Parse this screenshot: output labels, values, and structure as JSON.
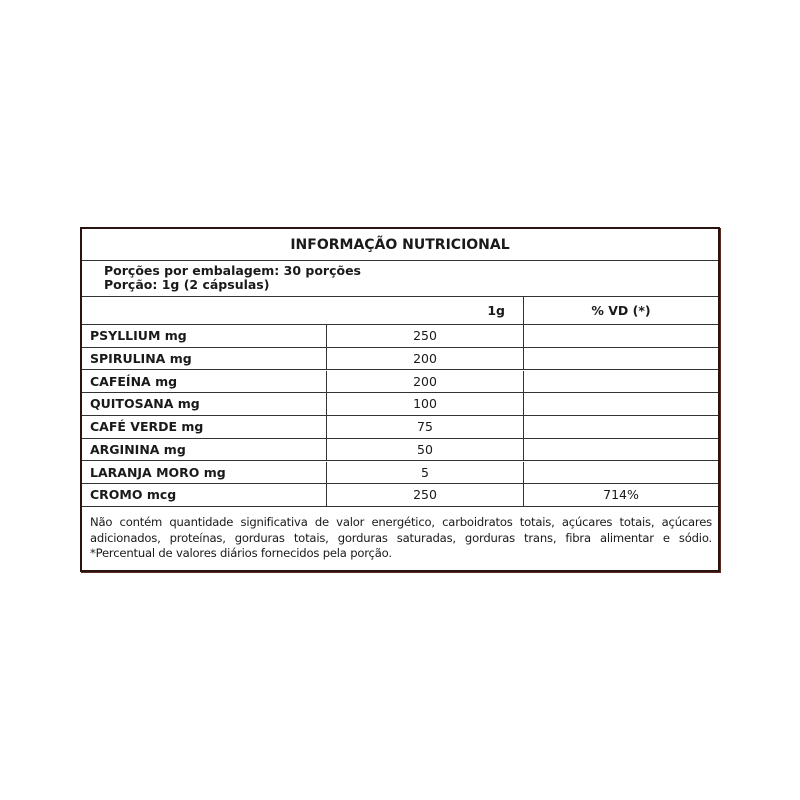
{
  "title": "INFORMAÇÃO NUTRICIONAL",
  "servings_per_package": "Porções por embalagem: 30 porções",
  "serving_size": "Porção: 1g (2 cápsulas)",
  "header": {
    "amount": "1g",
    "dv": "% VD (*)"
  },
  "rows": [
    {
      "name": "PSYLLIUM mg",
      "amount": "250",
      "dv": ""
    },
    {
      "name": "SPIRULINA mg",
      "amount": "200",
      "dv": ""
    },
    {
      "name": "CAFEÍNA mg",
      "amount": "200",
      "dv": ""
    },
    {
      "name": "QUITOSANA mg",
      "amount": "100",
      "dv": ""
    },
    {
      "name": "CAFÉ VERDE mg",
      "amount": "75",
      "dv": ""
    },
    {
      "name": "ARGININA mg",
      "amount": "50",
      "dv": ""
    },
    {
      "name": "LARANJA MORO mg",
      "amount": "5",
      "dv": ""
    },
    {
      "name": "CROMO mcg",
      "amount": "250",
      "dv": "714%"
    }
  ],
  "footnote": "Não contém quantidade significativa de valor energético, carboidratos totais, açúcares totais, açúcares adicionados, proteínas, gorduras totais, gorduras saturadas, gorduras trans, fibra alimentar e sódio. *Percentual de valores diários fornecidos pela porção."
}
